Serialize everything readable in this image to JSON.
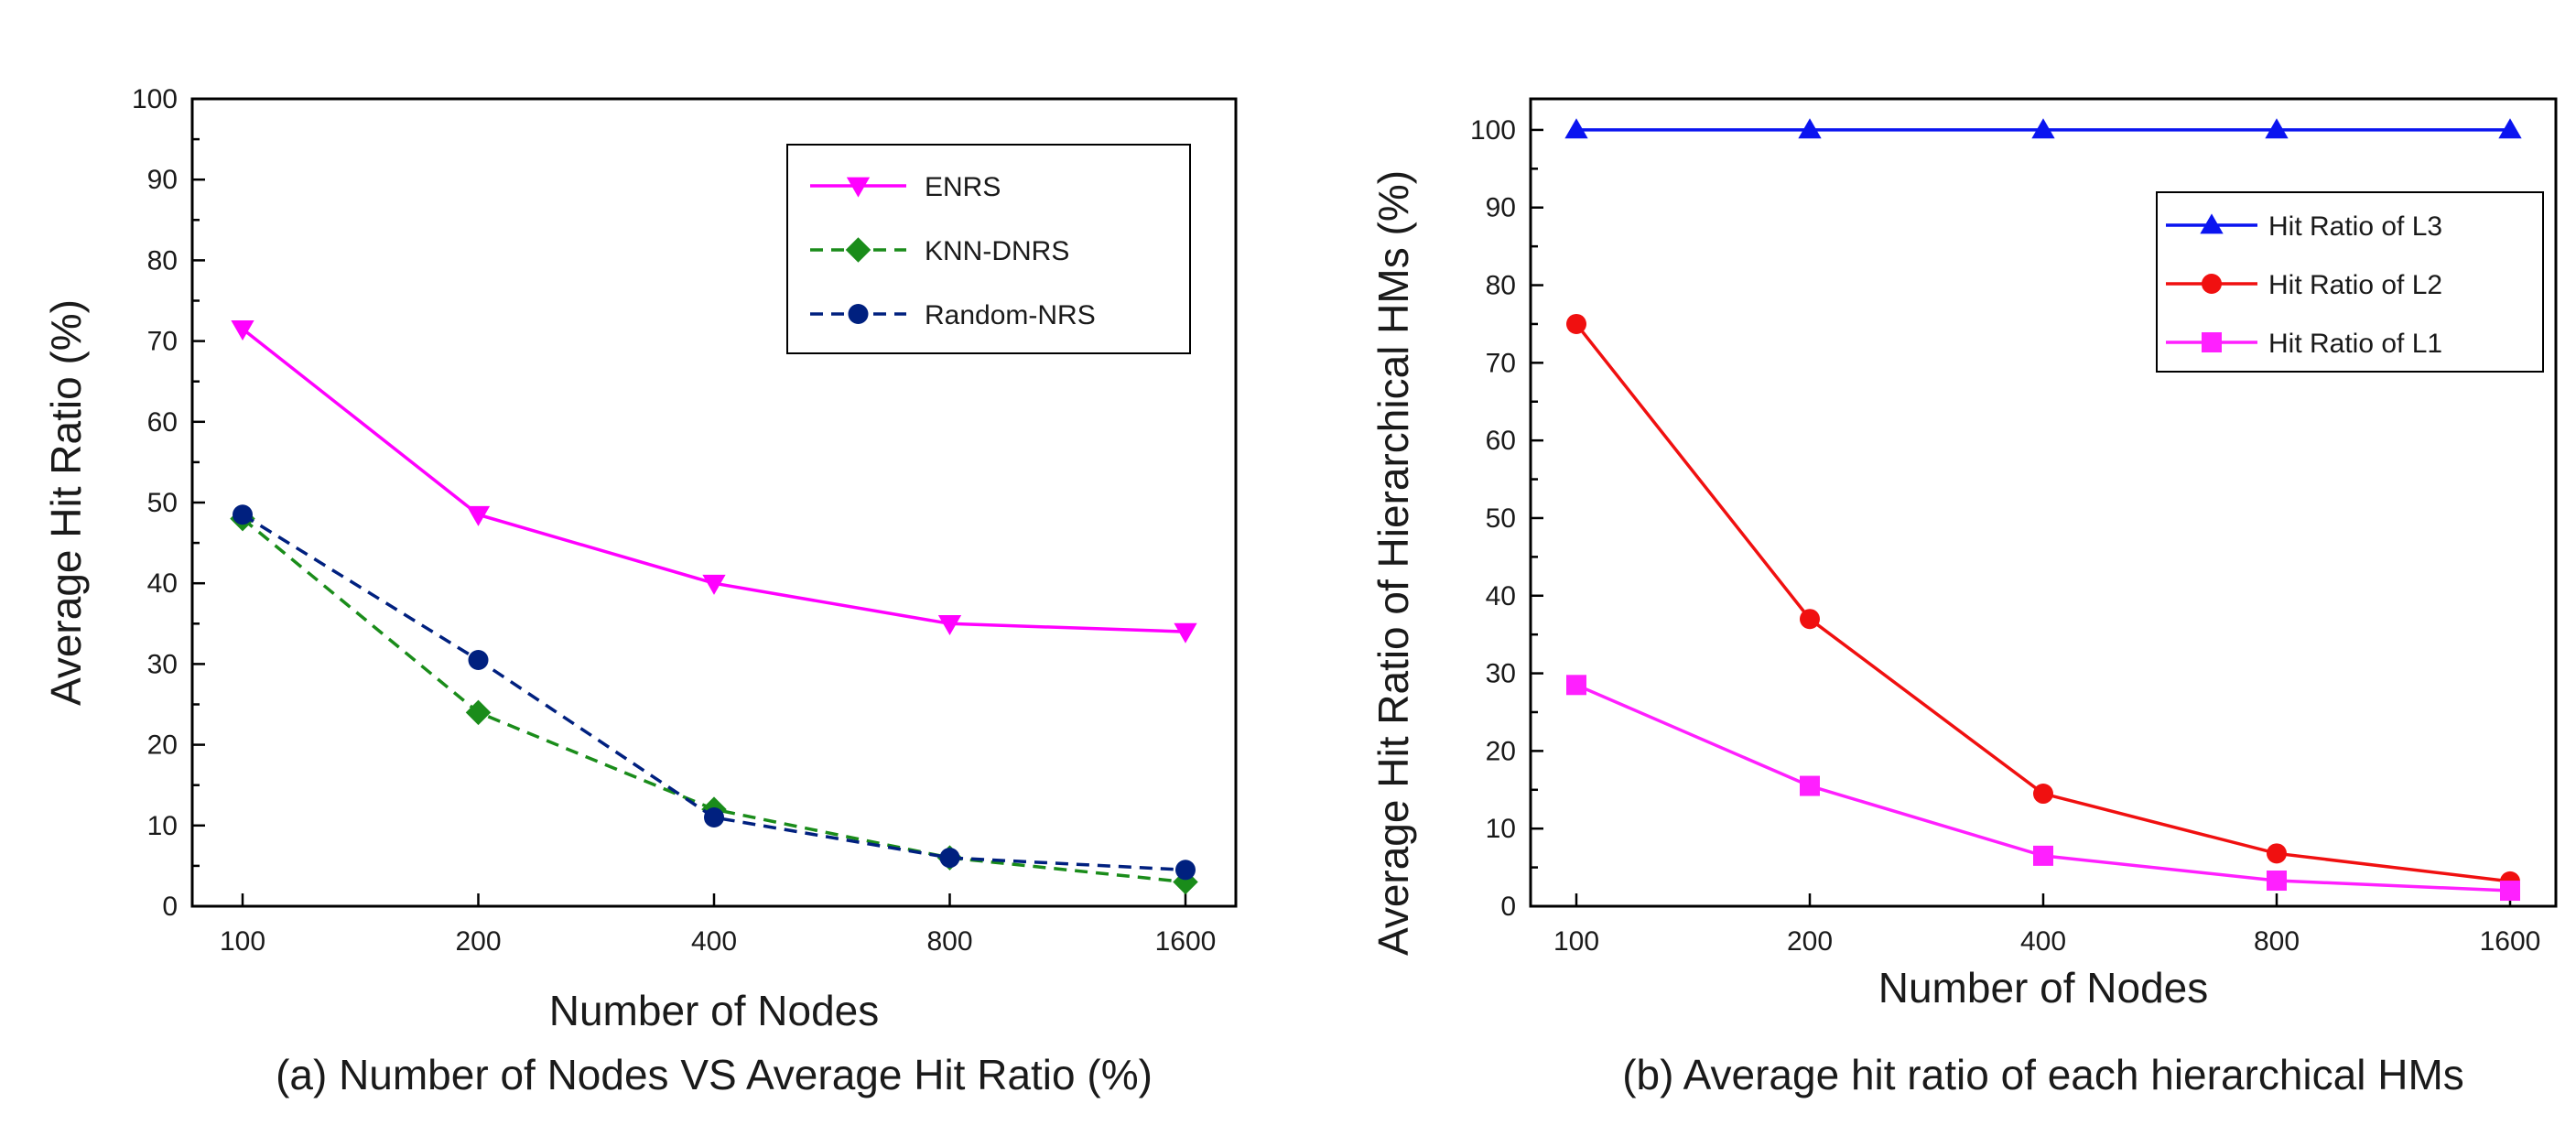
{
  "chart_data": [
    {
      "type": "line",
      "title": "",
      "caption": "(a) Number of Nodes VS Average Hit Ratio (%)",
      "xlabel": "Number of Nodes",
      "ylabel": "Average Hit Ratio (%)",
      "categories": [
        "100",
        "200",
        "400",
        "800",
        "1600"
      ],
      "ylim": [
        0,
        100
      ],
      "yticks": [
        "0",
        "10",
        "20",
        "30",
        "40",
        "50",
        "60",
        "70",
        "80",
        "90",
        "100"
      ],
      "legend_position": "top-right",
      "grid": false,
      "series": [
        {
          "name": "ENRS",
          "values": [
            71.5,
            48.5,
            40,
            35,
            34
          ],
          "color": "#ff00ff",
          "marker": "triangle-down",
          "dash": "solid"
        },
        {
          "name": "KNN-DNRS",
          "values": [
            48,
            24,
            12,
            6,
            3
          ],
          "color": "#1a8c1a",
          "marker": "diamond",
          "dash": "dashed"
        },
        {
          "name": "Random-NRS",
          "values": [
            48.5,
            30.5,
            11,
            6,
            4.5
          ],
          "color": "#00207f",
          "marker": "circle",
          "dash": "dashed"
        }
      ]
    },
    {
      "type": "line",
      "title": "",
      "caption": "(b) Average hit ratio of each hierarchical HMs",
      "xlabel": "Number of Nodes",
      "ylabel": "Average Hit Ratio of  Hierarchical HMs (%)",
      "categories": [
        "100",
        "200",
        "400",
        "800",
        "1600"
      ],
      "ylim": [
        0,
        104
      ],
      "yticks": [
        "0",
        "10",
        "20",
        "30",
        "40",
        "50",
        "60",
        "70",
        "80",
        "90",
        "100"
      ],
      "legend_position": "top-right",
      "grid": false,
      "series": [
        {
          "name": "Hit Ratio of L3",
          "values": [
            100,
            100,
            100,
            100,
            100
          ],
          "color": "#0a14f0",
          "marker": "triangle-up",
          "dash": "solid"
        },
        {
          "name": "Hit Ratio of L2",
          "values": [
            75,
            37,
            14.5,
            6.8,
            3.2
          ],
          "color": "#f01010",
          "marker": "circle",
          "dash": "solid"
        },
        {
          "name": "Hit Ratio of L1",
          "values": [
            28.5,
            15.5,
            6.5,
            3.3,
            2
          ],
          "color": "#ff20ff",
          "marker": "square",
          "dash": "solid"
        }
      ]
    }
  ]
}
